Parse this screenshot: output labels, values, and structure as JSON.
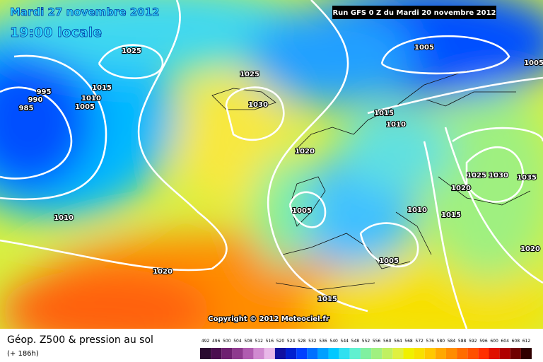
{
  "header": {
    "date": "Mardi 27 novembre 2012",
    "time": "19:00 locale",
    "run": "Run GFS 0 Z du Mardi 20 novembre 2012"
  },
  "isobar_labels": [
    1025,
    1025,
    995,
    990,
    985,
    1010,
    1015,
    1005,
    1030,
    1015,
    1010,
    1005,
    1005,
    1020,
    1005,
    1010,
    1020,
    1010,
    1015,
    1025,
    1030,
    1035,
    1020,
    1020,
    1005,
    1015
  ],
  "copyright": "Copyright © 2012 Meteociel.fr",
  "footer": {
    "title": "Géop. Z500 & pression au sol",
    "lead": "(+ 186h)"
  },
  "legend": {
    "values": [
      492,
      496,
      500,
      504,
      508,
      512,
      516,
      520,
      524,
      528,
      532,
      536,
      540,
      544,
      548,
      552,
      556,
      560,
      564,
      568,
      572,
      576,
      580,
      584,
      588,
      592,
      596,
      600,
      604,
      608,
      612
    ],
    "colors": [
      "#2a0a30",
      "#4b0e4f",
      "#6e2070",
      "#8e3a8e",
      "#b05cb0",
      "#d08ad0",
      "#e8b8e8",
      "#1010a0",
      "#0020d0",
      "#0040ff",
      "#0070ff",
      "#00a0ff",
      "#00c8ff",
      "#30e0f0",
      "#60f0d0",
      "#80f0a0",
      "#a0f080",
      "#c0f060",
      "#e0f040",
      "#f0f000",
      "#f8e000",
      "#ffc800",
      "#ffa800",
      "#ff8c00",
      "#ff6c00",
      "#ff5000",
      "#ff3000",
      "#e01000",
      "#b00000",
      "#700000",
      "#300000"
    ]
  }
}
